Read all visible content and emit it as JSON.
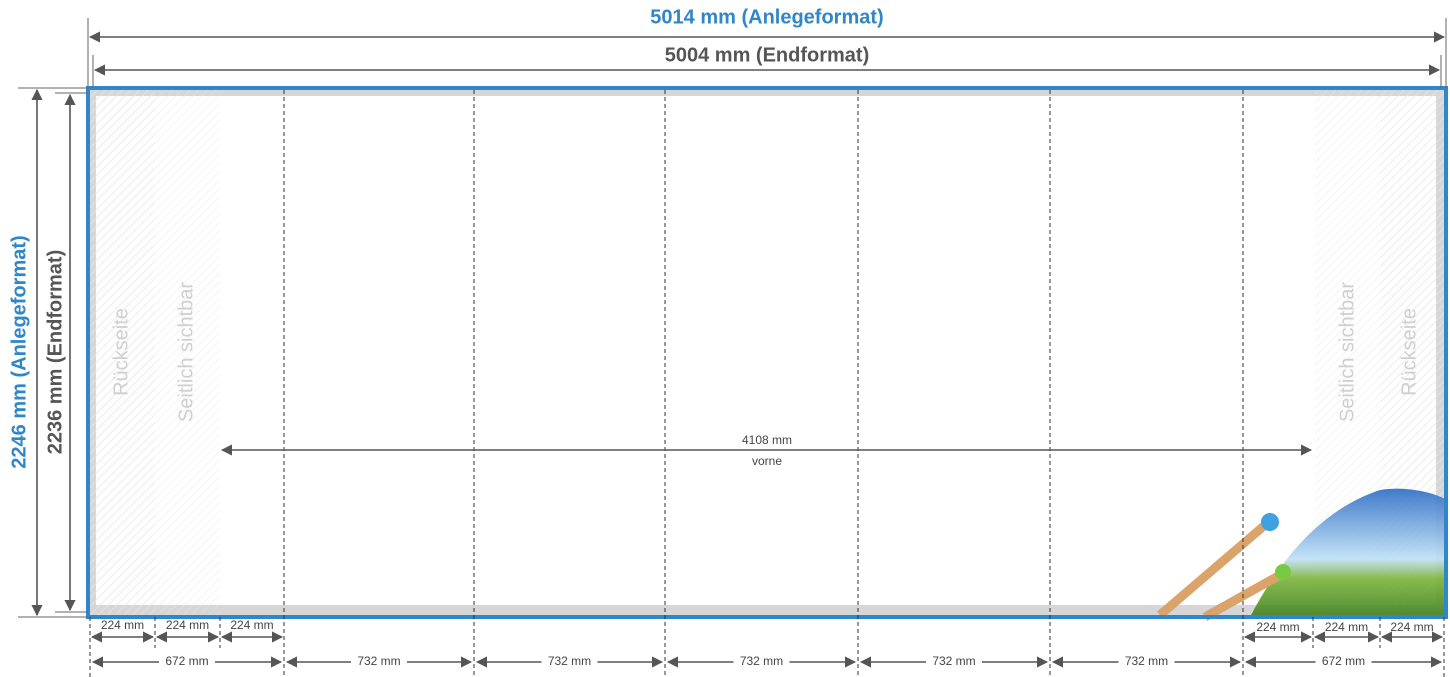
{
  "dimensions": {
    "width_bleed": "5014 mm (Anlegeformat)",
    "width_final": "5004 mm (Endformat)",
    "height_bleed": "2246 mm (Anlegeformat)",
    "height_final": "2236 mm (Endformat)"
  },
  "zones": {
    "left": [
      "Rückseite",
      "Seitlich sichtbar"
    ],
    "right": [
      "Seitlich sichtbar",
      "Rückseite"
    ]
  },
  "front": {
    "width": "4108 mm",
    "label": "vorne"
  },
  "bottom_small": {
    "left": [
      "224 mm",
      "224 mm",
      "224 mm"
    ],
    "right": [
      "224 mm",
      "224 mm",
      "224 mm"
    ]
  },
  "bottom_panels": [
    "672 mm",
    "732 mm",
    "732 mm",
    "732 mm",
    "732 mm",
    "732 mm",
    "672 mm"
  ]
}
